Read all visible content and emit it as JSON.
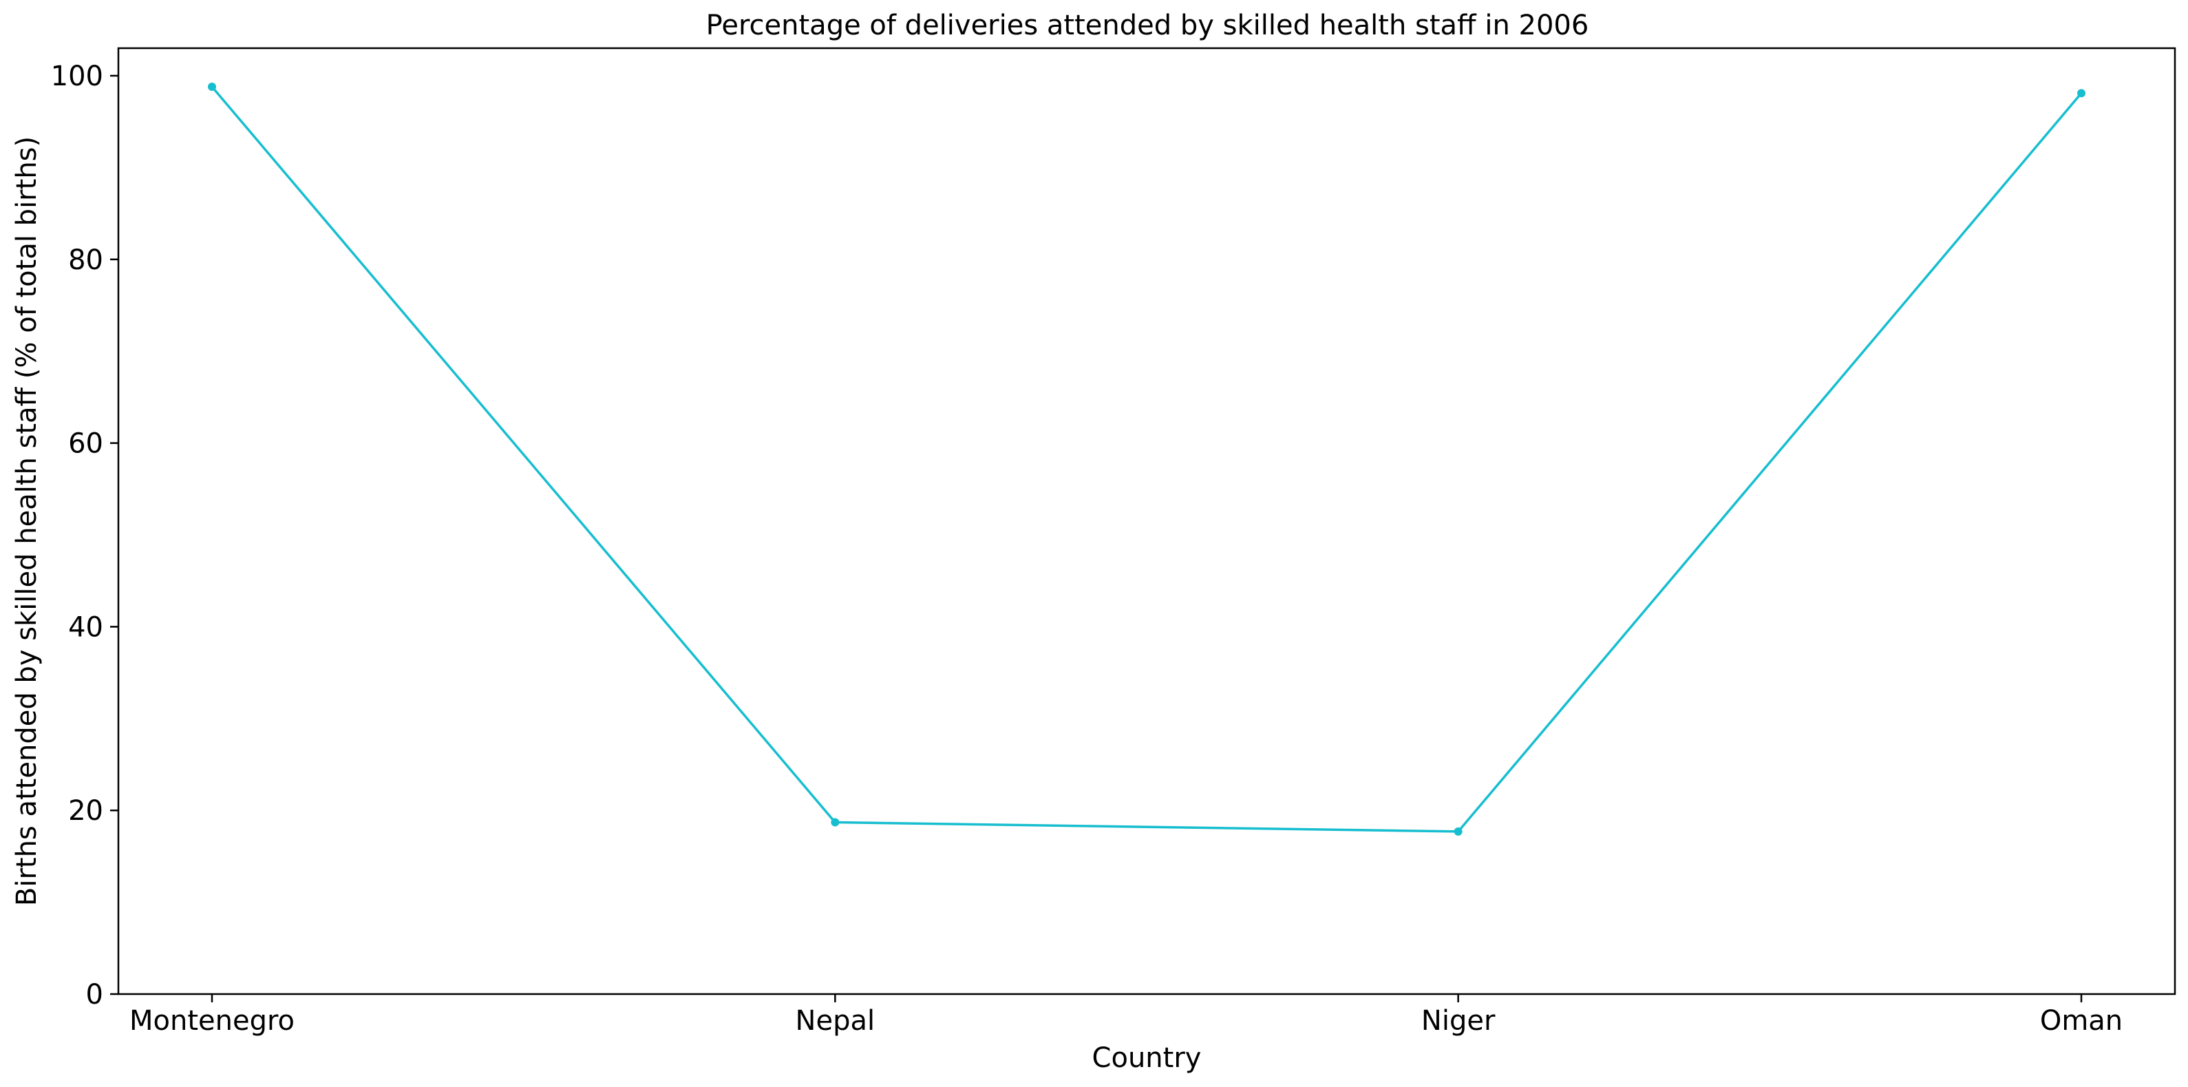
{
  "chart_data": {
    "type": "line",
    "title": "Percentage of deliveries attended by skilled health staff in 2006",
    "xlabel": "Country",
    "ylabel": "Births attended by skilled health staff (% of total births)",
    "categories": [
      "Montenegro",
      "Nepal",
      "Niger",
      "Oman"
    ],
    "series": [
      {
        "values": [
          98.8,
          18.7,
          17.7,
          98.1
        ],
        "color": "#17becf"
      }
    ],
    "ylim": [
      0,
      103
    ],
    "yticks": [
      0,
      20,
      40,
      60,
      80,
      100
    ],
    "grid": false,
    "legend": "none"
  }
}
